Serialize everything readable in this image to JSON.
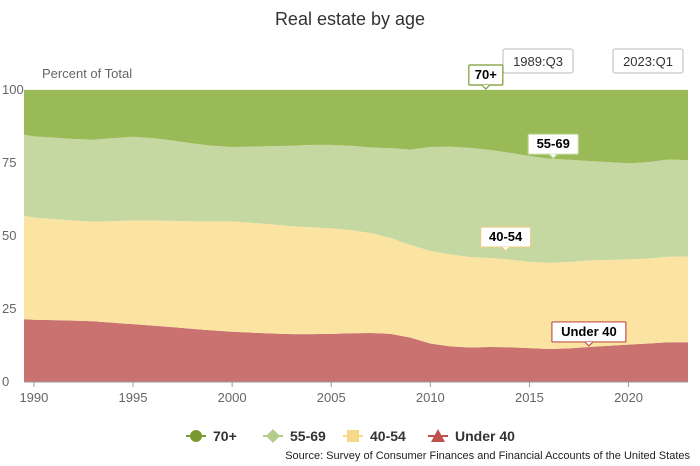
{
  "chart_data": {
    "type": "area",
    "stacked": true,
    "title": "Real estate by age",
    "ylabel": "Percent of Total",
    "ylim": [
      0,
      100
    ],
    "xlim": [
      1989.5,
      2023.0
    ],
    "y_ticks": [
      "0",
      "25",
      "50",
      "75",
      "100"
    ],
    "x_ticks": [
      "1990",
      "1995",
      "2000",
      "2005",
      "2010",
      "2015",
      "2020"
    ],
    "range_start": "1989:Q3",
    "range_end": "2023:Q1",
    "source": "Source: Survey of Consumer Finances and Financial Accounts of the United States",
    "x": [
      1989.5,
      1990,
      1991,
      1992,
      1993,
      1994,
      1995,
      1996,
      1997,
      1998,
      1999,
      2000,
      2001,
      2002,
      2003,
      2004,
      2005,
      2006,
      2007,
      2008,
      2009,
      2010,
      2011,
      2012,
      2013,
      2014,
      2015,
      2016,
      2017,
      2018,
      2019,
      2020,
      2021,
      2022,
      2023
    ],
    "series": [
      {
        "name": "Under 40",
        "color": "#c97270",
        "values": [
          21.5,
          21.3,
          21.2,
          21.0,
          20.8,
          20.3,
          19.8,
          19.3,
          18.8,
          18.2,
          17.7,
          17.2,
          16.9,
          16.6,
          16.4,
          16.4,
          16.5,
          16.7,
          16.8,
          16.5,
          15.2,
          13.2,
          12.2,
          11.8,
          12.0,
          11.9,
          11.6,
          11.3,
          11.5,
          12.0,
          12.4,
          12.8,
          13.2,
          13.6,
          13.6
        ]
      },
      {
        "name": "40-54",
        "color": "#fbe4a2",
        "values": [
          35.5,
          35.0,
          34.6,
          34.3,
          34.1,
          34.8,
          35.5,
          36.0,
          36.4,
          36.8,
          37.3,
          37.8,
          37.6,
          37.4,
          37.0,
          36.6,
          36.1,
          35.3,
          34.2,
          32.8,
          31.7,
          31.7,
          31.5,
          31.0,
          30.5,
          30.0,
          29.6,
          29.5,
          29.6,
          29.6,
          29.4,
          29.2,
          29.1,
          29.3,
          29.4
        ]
      },
      {
        "name": "55-69",
        "color": "#c6d8a2",
        "values": [
          27.7,
          27.8,
          27.9,
          27.9,
          28.1,
          28.4,
          28.7,
          28.2,
          27.5,
          26.7,
          25.9,
          25.5,
          26.1,
          26.8,
          27.5,
          28.2,
          28.6,
          28.9,
          29.3,
          30.8,
          32.7,
          35.6,
          36.9,
          37.4,
          37.0,
          36.6,
          36.2,
          35.7,
          35.0,
          34.1,
          33.5,
          32.9,
          33.0,
          33.3,
          33.0
        ]
      },
      {
        "name": "70+",
        "color": "#9ab957",
        "values": [
          15.3,
          15.9,
          16.3,
          16.8,
          17.0,
          16.5,
          16.0,
          16.5,
          17.3,
          18.3,
          19.1,
          19.5,
          19.4,
          19.2,
          19.1,
          18.8,
          18.8,
          19.1,
          19.7,
          19.9,
          20.4,
          19.5,
          19.4,
          19.8,
          20.5,
          21.5,
          22.6,
          23.5,
          23.9,
          24.3,
          24.7,
          25.1,
          24.7,
          23.8,
          24.0
        ]
      }
    ],
    "callouts": [
      {
        "label": "70+",
        "x": 2012.8,
        "y": 100,
        "border": "#7a9a30"
      },
      {
        "label": "55-69",
        "x": 2016.2,
        "y": 76.3,
        "border": "#c6d8a2"
      },
      {
        "label": "40-54",
        "x": 2013.8,
        "y": 44.5,
        "border": "#e6cf86"
      },
      {
        "label": "Under 40",
        "x": 2018.0,
        "y": 12.0,
        "border": "#c0504d"
      }
    ],
    "legend": [
      {
        "label": "70+",
        "color": "#7a9a30",
        "marker": "circle"
      },
      {
        "label": "55-69",
        "color": "#b3cd8a",
        "marker": "diamond"
      },
      {
        "label": "40-54",
        "color": "#f6d98a",
        "marker": "square"
      },
      {
        "label": "Under 40",
        "color": "#c0504d",
        "marker": "triangle"
      }
    ]
  }
}
